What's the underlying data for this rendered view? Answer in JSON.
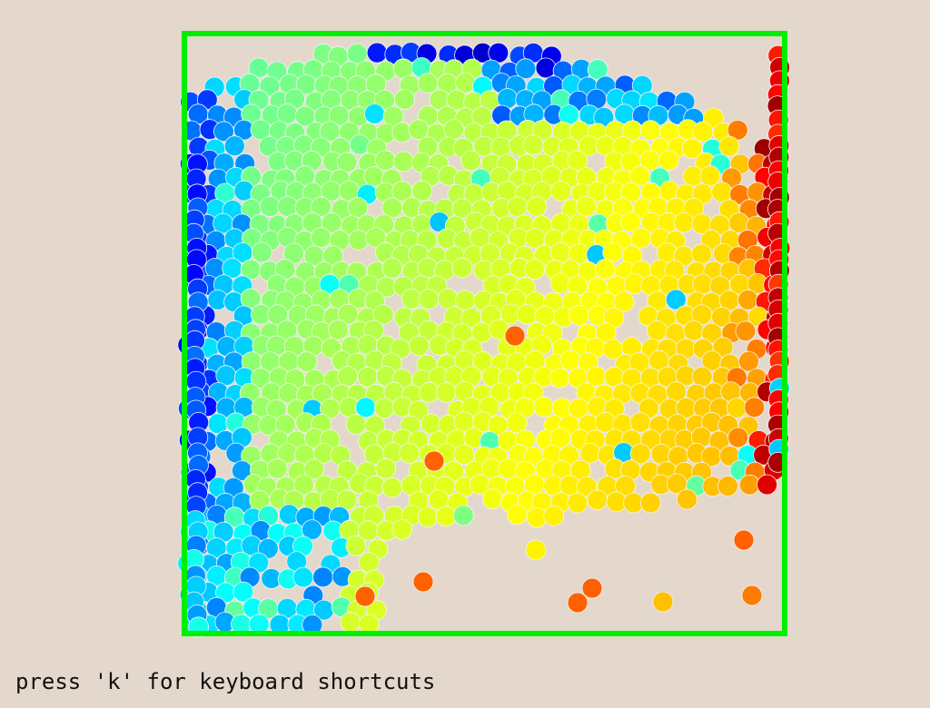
{
  "app": {
    "hint_text": "press 'k' for keyboard shortcuts"
  },
  "colors": {
    "background": "#e4d8cc",
    "container_border": "#00ee00",
    "particle_outline": "#f4f4f4",
    "colormap": [
      "#00007f",
      "#0000ff",
      "#007fff",
      "#00ffff",
      "#7fff7f",
      "#ffff00",
      "#ff7f00",
      "#ff0000",
      "#7f0000"
    ]
  },
  "simulation": {
    "particle_count": 1900,
    "color_mapping": "horizontal velocity (jet colormap)"
  }
}
